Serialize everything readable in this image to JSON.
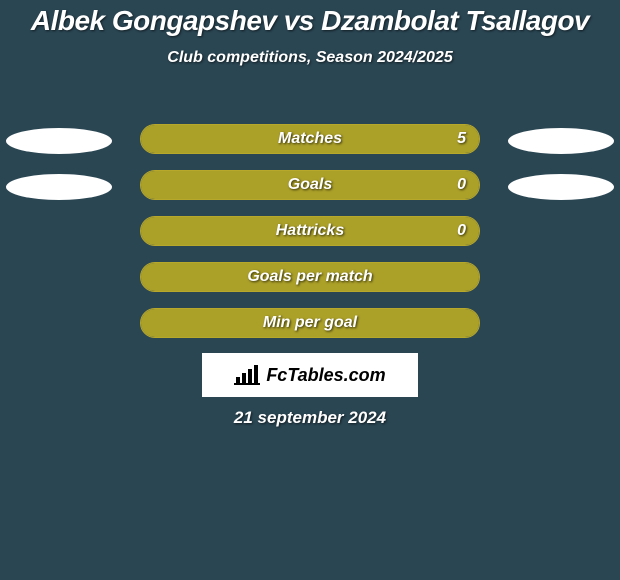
{
  "colors": {
    "bg": "#2a4653",
    "title": "#ffffff",
    "subtitle": "#ffffff",
    "bar_border": "#b7a72b",
    "bar_fill": "#aba028",
    "bar_label": "#ffffff",
    "bar_value": "#ffffff",
    "ellipse": "#ffffff",
    "brand_bg": "#ffffff",
    "brand_text": "#000000",
    "date": "#ffffff"
  },
  "title": {
    "text": "Albek Gongapshev vs Dzambolat Tsallagov",
    "fontsize": 28
  },
  "subtitle": {
    "text": "Club competitions, Season 2024/2025",
    "fontsize": 16
  },
  "rows": [
    {
      "label": "Matches",
      "value_right": "5",
      "show_value": true,
      "left_pct": 0,
      "right_pct": 100,
      "left_ellipse": true,
      "right_ellipse": true
    },
    {
      "label": "Goals",
      "value_right": "0",
      "show_value": true,
      "left_pct": 50,
      "right_pct": 50,
      "left_ellipse": true,
      "right_ellipse": true
    },
    {
      "label": "Hattricks",
      "value_right": "0",
      "show_value": true,
      "left_pct": 50,
      "right_pct": 50,
      "left_ellipse": false,
      "right_ellipse": false
    },
    {
      "label": "Goals per match",
      "value_right": "",
      "show_value": false,
      "left_pct": 50,
      "right_pct": 50,
      "left_ellipse": false,
      "right_ellipse": false
    },
    {
      "label": "Min per goal",
      "value_right": "",
      "show_value": false,
      "left_pct": 50,
      "right_pct": 50,
      "left_ellipse": false,
      "right_ellipse": false
    }
  ],
  "bar": {
    "label_fontsize": 16,
    "value_fontsize": 16
  },
  "brand": {
    "text": "FcTables.com"
  },
  "date": {
    "text": "21 september 2024",
    "fontsize": 17
  }
}
